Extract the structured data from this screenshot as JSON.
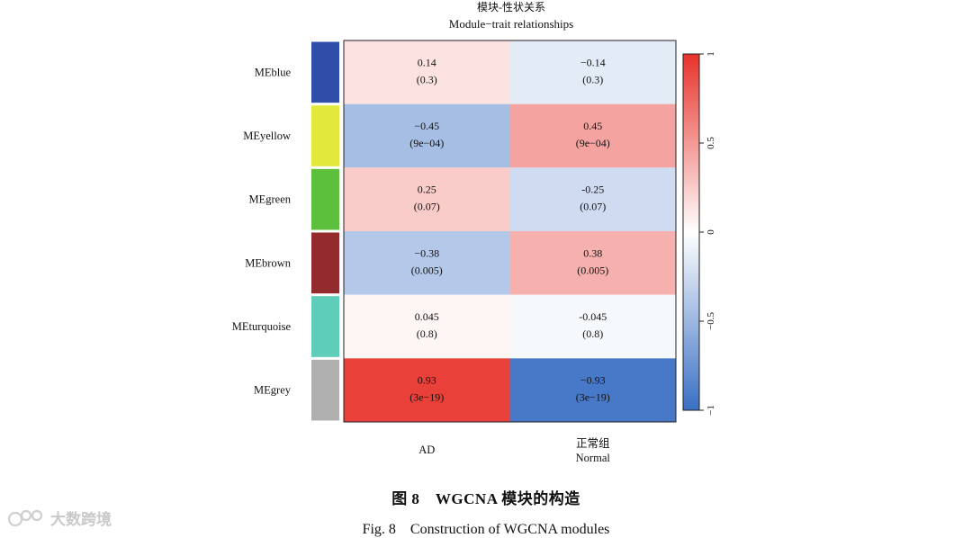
{
  "figure": {
    "title_cn": "模块-性状关系",
    "title_en": "Module−trait relationships"
  },
  "caption": {
    "cn": "图 8　WGCNA 模块的构造",
    "en": "Fig. 8　Construction of WGCNA modules"
  },
  "watermark": {
    "text": "大数跨境"
  },
  "chart_data": {
    "type": "heatmap",
    "title": "Module−trait relationships",
    "rows": [
      {
        "name": "MEblue",
        "color": "#2f4eaa"
      },
      {
        "name": "MEyellow",
        "color": "#e2e83c"
      },
      {
        "name": "MEgreen",
        "color": "#5cc03c"
      },
      {
        "name": "MEbrown",
        "color": "#922a2e"
      },
      {
        "name": "MEturquoise",
        "color": "#5ecdb9"
      },
      {
        "name": "MEgrey",
        "color": "#b0b0b0"
      }
    ],
    "columns": [
      {
        "label": "AD",
        "sublabel": ""
      },
      {
        "label": "正常组",
        "sublabel": "Normal"
      }
    ],
    "values": [
      [
        0.14,
        -0.14
      ],
      [
        -0.45,
        0.45
      ],
      [
        0.25,
        -0.25
      ],
      [
        -0.38,
        0.38
      ],
      [
        0.045,
        -0.045
      ],
      [
        0.93,
        -0.93
      ]
    ],
    "value_labels": [
      [
        "0.14",
        "−0.14"
      ],
      [
        "−0.45",
        "0.45"
      ],
      [
        "0.25",
        "-0.25"
      ],
      [
        "−0.38",
        "0.38"
      ],
      [
        "0.045",
        "-0.045"
      ],
      [
        "0.93",
        "−0.93"
      ]
    ],
    "pvalue_labels": [
      [
        "(0.3)",
        "(0.3)"
      ],
      [
        "(9e−04)",
        "(9e−04)"
      ],
      [
        "(0.07)",
        "(0.07)"
      ],
      [
        "(0.005)",
        "(0.005)"
      ],
      [
        "(0.8)",
        "(0.8)"
      ],
      [
        "(3e−19)",
        "(3e−19)"
      ]
    ],
    "color_scale": {
      "range": [
        -1,
        1
      ],
      "low": "#3a6fc4",
      "mid": "#ffffff",
      "high": "#e8322b",
      "ticks": [
        1,
        0.5,
        0,
        -0.5,
        -1
      ],
      "tick_labels": [
        "1",
        "0.5",
        "0",
        "−0.5",
        "−1"
      ]
    }
  }
}
